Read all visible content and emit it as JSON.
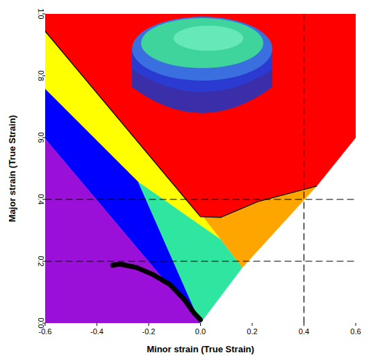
{
  "chart_data": {
    "type": "area",
    "x_label": "Minor strain (True Strain)",
    "y_label": "Major strain (True Strain)",
    "xlim": [
      -0.6,
      0.6
    ],
    "ylim": [
      0,
      1.0
    ],
    "xticks": [
      -0.6,
      -0.4,
      -0.2,
      {
        "value": 0,
        "label": "0.0"
      },
      0.2,
      0.4,
      0.6
    ],
    "yticks": [
      {
        "value": 0,
        "label": "0.0"
      },
      0.2,
      0.4,
      0.6,
      0.8,
      {
        "value": 1.0,
        "label": "1.0"
      }
    ],
    "grid": false,
    "series": [
      {
        "type": "area",
        "color": "#ff0000",
        "x": [
          -0.6,
          0.6,
          0.6,
          0.449,
          0.222,
          0.078,
          0.0,
          -0.6
        ],
        "values": [
          1.0,
          1.0,
          0.6,
          0.443,
          0.393,
          0.342,
          0.344,
          0.944
        ]
      },
      {
        "type": "area",
        "color": "#ffff00",
        "x": [
          -0.6,
          0.0,
          0.013,
          0.078,
          -0.24,
          -0.6
        ],
        "values": [
          0.944,
          0.344,
          0.342,
          0.27,
          0.456,
          0.757
        ]
      },
      {
        "type": "area",
        "color": "#0000ff",
        "x": [
          -0.6,
          -0.24,
          0.0,
          -0.6
        ],
        "values": [
          0.757,
          0.456,
          0.0,
          0.596
        ]
      },
      {
        "type": "area",
        "color": "#9b10d8",
        "x": [
          -0.6,
          0.0,
          -0.6
        ],
        "values": [
          0.596,
          0.0,
          0.0
        ]
      },
      {
        "type": "area",
        "color": "#2ee6a0",
        "x": [
          -0.24,
          0.078,
          0.162,
          0.0
        ],
        "values": [
          0.456,
          0.27,
          0.18,
          0.0
        ]
      },
      {
        "type": "area",
        "color": "#ffa500",
        "x": [
          0.013,
          0.078,
          0.222,
          0.449,
          0.162
        ],
        "values": [
          0.342,
          0.342,
          0.393,
          0.443,
          0.18
        ]
      },
      {
        "type": "line",
        "color": "#000000",
        "line_style": "solid",
        "x": [
          -0.6,
          0.0,
          0.078,
          0.222,
          0.449
        ],
        "values": [
          0.944,
          0.344,
          0.342,
          0.393,
          0.443
        ]
      },
      {
        "type": "line",
        "color": "#000000",
        "line_style": "dashed",
        "x": [
          -0.6,
          0.6
        ],
        "values": [
          0.4,
          0.4
        ]
      },
      {
        "type": "line",
        "color": "#000000",
        "line_style": "dashed",
        "x": [
          -0.6,
          0.6
        ],
        "values": [
          0.2,
          0.2
        ]
      },
      {
        "type": "line",
        "color": "#000000",
        "line_style": "dashed",
        "x": [
          0.4,
          0.4
        ],
        "values": [
          0.0,
          1.0
        ]
      },
      {
        "type": "line",
        "color": "#000000",
        "line_style": "thick",
        "x": [
          -0.339,
          -0.313,
          -0.248,
          -0.183,
          -0.117,
          -0.065,
          -0.026,
          0.0
        ],
        "values": [
          0.187,
          0.191,
          0.18,
          0.157,
          0.124,
          0.079,
          0.034,
          0.011
        ]
      }
    ]
  }
}
